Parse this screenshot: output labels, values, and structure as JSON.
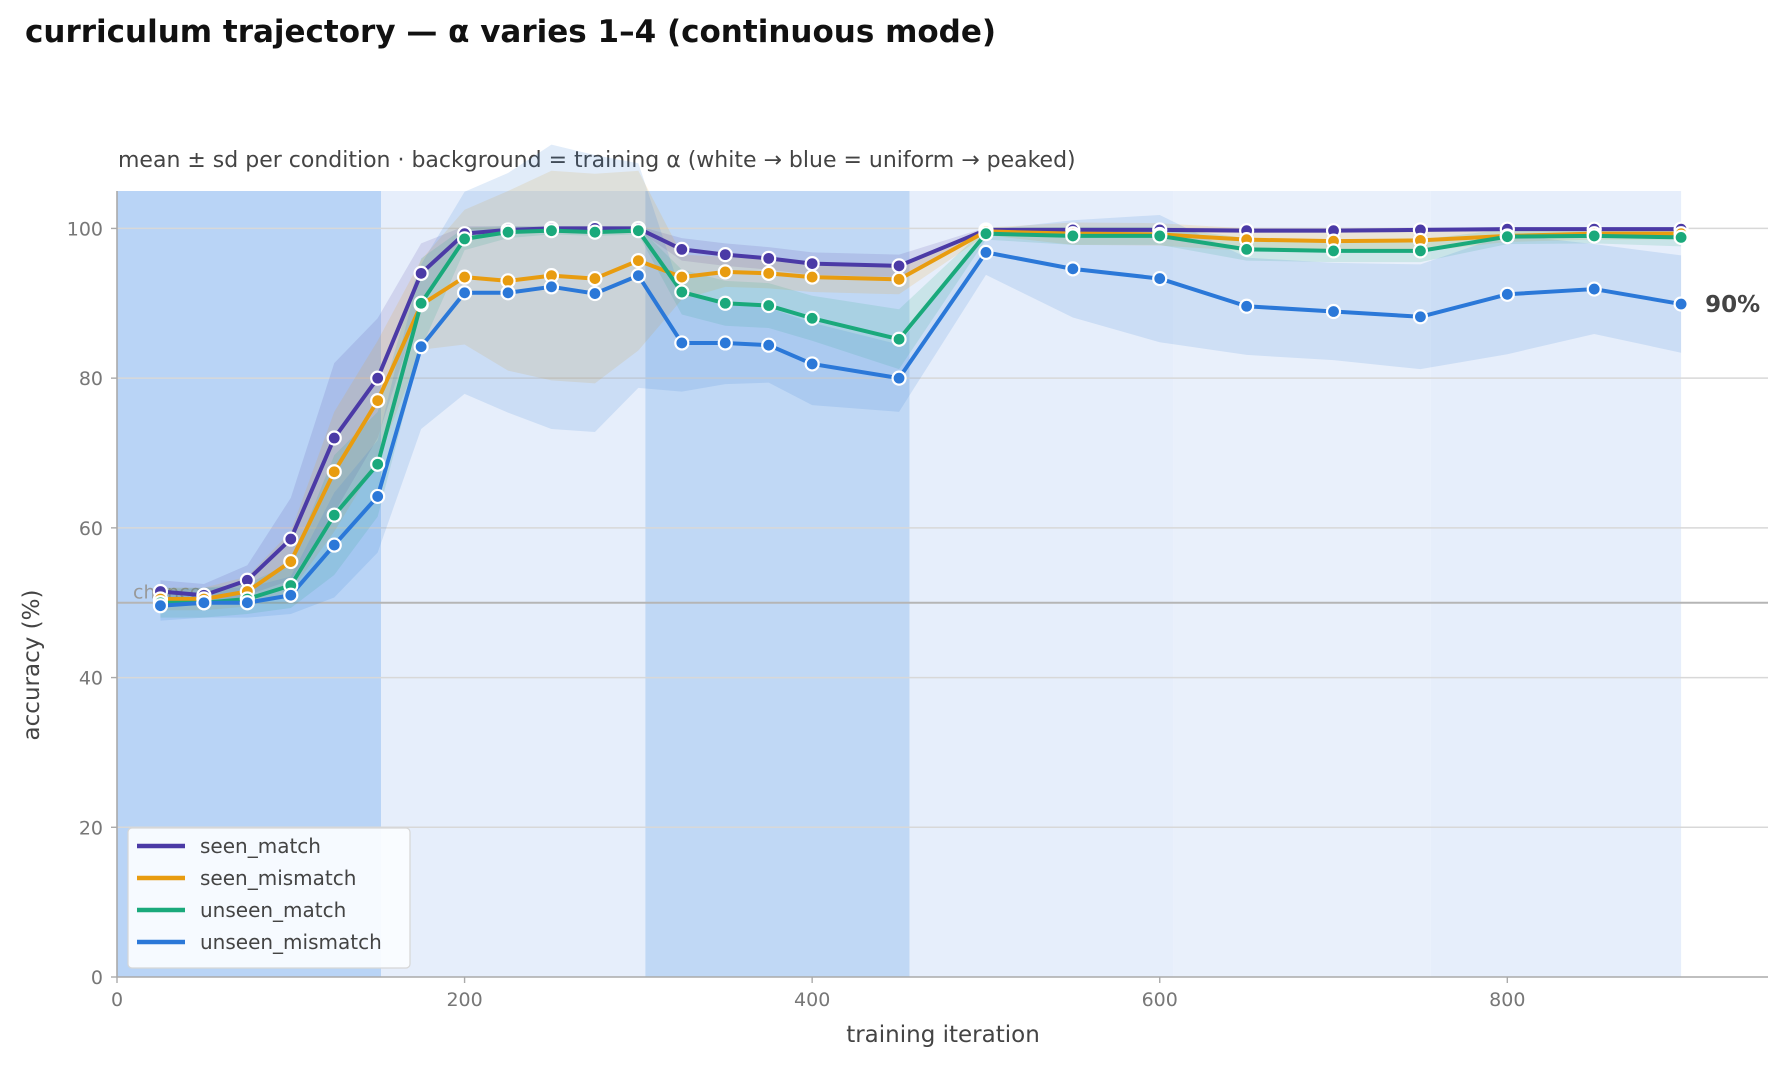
{
  "title": "curriculum trajectory — α varies 1–4 (continuous mode)",
  "chart_data": {
    "type": "line",
    "subtitle": "mean ± sd per condition · background = training α (white → blue = uniform → peaked)",
    "xlabel": "training iteration",
    "ylabel": "accuracy (%)",
    "xlim": [
      0,
      950
    ],
    "ylim": [
      0,
      105
    ],
    "xticks": [
      0,
      200,
      400,
      600,
      800
    ],
    "yticks": [
      0,
      20,
      40,
      60,
      80,
      100
    ],
    "grid": "horizontal",
    "legend_position": "bottom-left",
    "chance_level": 50,
    "chance_label": "chance",
    "end_label": "90%",
    "alpha_bands": [
      {
        "x0": 0,
        "x1": 152,
        "color": "#b9d4f6"
      },
      {
        "x0": 152,
        "x1": 304,
        "color": "#e6eefb"
      },
      {
        "x0": 304,
        "x1": 456,
        "color": "#c0d8f5"
      },
      {
        "x0": 456,
        "x1": 608,
        "color": "#e6eefb"
      },
      {
        "x0": 608,
        "x1": 756,
        "color": "#e9f0fb"
      },
      {
        "x0": 756,
        "x1": 900,
        "color": "#e6eefb"
      }
    ],
    "x": [
      25,
      50,
      75,
      100,
      125,
      150,
      175,
      200,
      225,
      250,
      275,
      300,
      325,
      350,
      375,
      400,
      450,
      500,
      550,
      600,
      650,
      700,
      750,
      800,
      850,
      900
    ],
    "series": [
      {
        "name": "seen_match",
        "color": "#4b3aa6",
        "values": [
          51.5,
          51.0,
          53.0,
          58.5,
          72.0,
          80.0,
          94.0,
          99.3,
          99.8,
          100,
          100,
          100,
          97.2,
          96.5,
          96.0,
          95.3,
          95.0,
          99.8,
          99.8,
          99.8,
          99.7,
          99.7,
          99.8,
          99.9,
          99.9,
          99.9
        ],
        "sd": [
          1.5,
          1.5,
          2.0,
          5.5,
          10.0,
          8.0,
          4.0,
          1.0,
          0.5,
          0.3,
          0.3,
          0.3,
          1.5,
          1.5,
          1.5,
          1.5,
          1.5,
          0.3,
          0.3,
          0.3,
          0.3,
          0.3,
          0.3,
          0.2,
          0.2,
          0.2
        ]
      },
      {
        "name": "seen_mismatch",
        "color": "#e89c10",
        "values": [
          50.5,
          50.5,
          51.5,
          55.5,
          67.5,
          77.0,
          89.8,
          93.5,
          93.0,
          93.7,
          93.3,
          95.7,
          93.5,
          94.2,
          94.0,
          93.5,
          93.2,
          99.6,
          99.3,
          99.2,
          98.5,
          98.3,
          98.4,
          99.0,
          99.3,
          99.3
        ],
        "sd": [
          1.5,
          1.5,
          2.0,
          4.0,
          8.0,
          8.0,
          6.0,
          9.0,
          12.0,
          14.0,
          14.0,
          12.0,
          3.0,
          2.0,
          2.0,
          2.0,
          2.0,
          0.5,
          1.5,
          1.5,
          1.5,
          1.5,
          1.5,
          0.8,
          0.8,
          0.8
        ]
      },
      {
        "name": "unseen_match",
        "color": "#1aa97b",
        "values": [
          50.0,
          50.0,
          50.5,
          52.3,
          61.7,
          68.5,
          90.0,
          98.6,
          99.5,
          99.7,
          99.5,
          99.7,
          91.5,
          90.0,
          89.7,
          88.0,
          85.2,
          99.3,
          99.0,
          99.0,
          97.2,
          97.0,
          97.0,
          98.9,
          99.0,
          98.8
        ],
        "sd": [
          2.0,
          2.0,
          2.0,
          3.0,
          8.0,
          7.0,
          6.0,
          1.5,
          0.8,
          0.5,
          0.5,
          0.5,
          3.0,
          3.0,
          3.0,
          3.0,
          4.0,
          0.8,
          1.2,
          1.2,
          1.5,
          1.5,
          1.5,
          1.0,
          1.0,
          1.2
        ]
      },
      {
        "name": "unseen_mismatch",
        "color": "#2b78d8",
        "values": [
          49.6,
          50.0,
          50.0,
          51.0,
          57.7,
          64.2,
          84.2,
          91.4,
          91.4,
          92.2,
          91.3,
          93.7,
          84.7,
          84.7,
          84.4,
          81.9,
          80.0,
          96.8,
          94.6,
          93.3,
          89.6,
          88.9,
          88.2,
          91.2,
          91.9,
          89.9
        ],
        "sd": [
          2.0,
          2.0,
          2.0,
          2.5,
          7.0,
          7.5,
          11.0,
          13.5,
          16.0,
          19.0,
          18.5,
          15.0,
          6.5,
          5.5,
          5.0,
          5.5,
          4.5,
          3.0,
          6.5,
          8.5,
          6.5,
          6.5,
          7.0,
          8.0,
          6.0,
          6.5
        ]
      }
    ]
  }
}
